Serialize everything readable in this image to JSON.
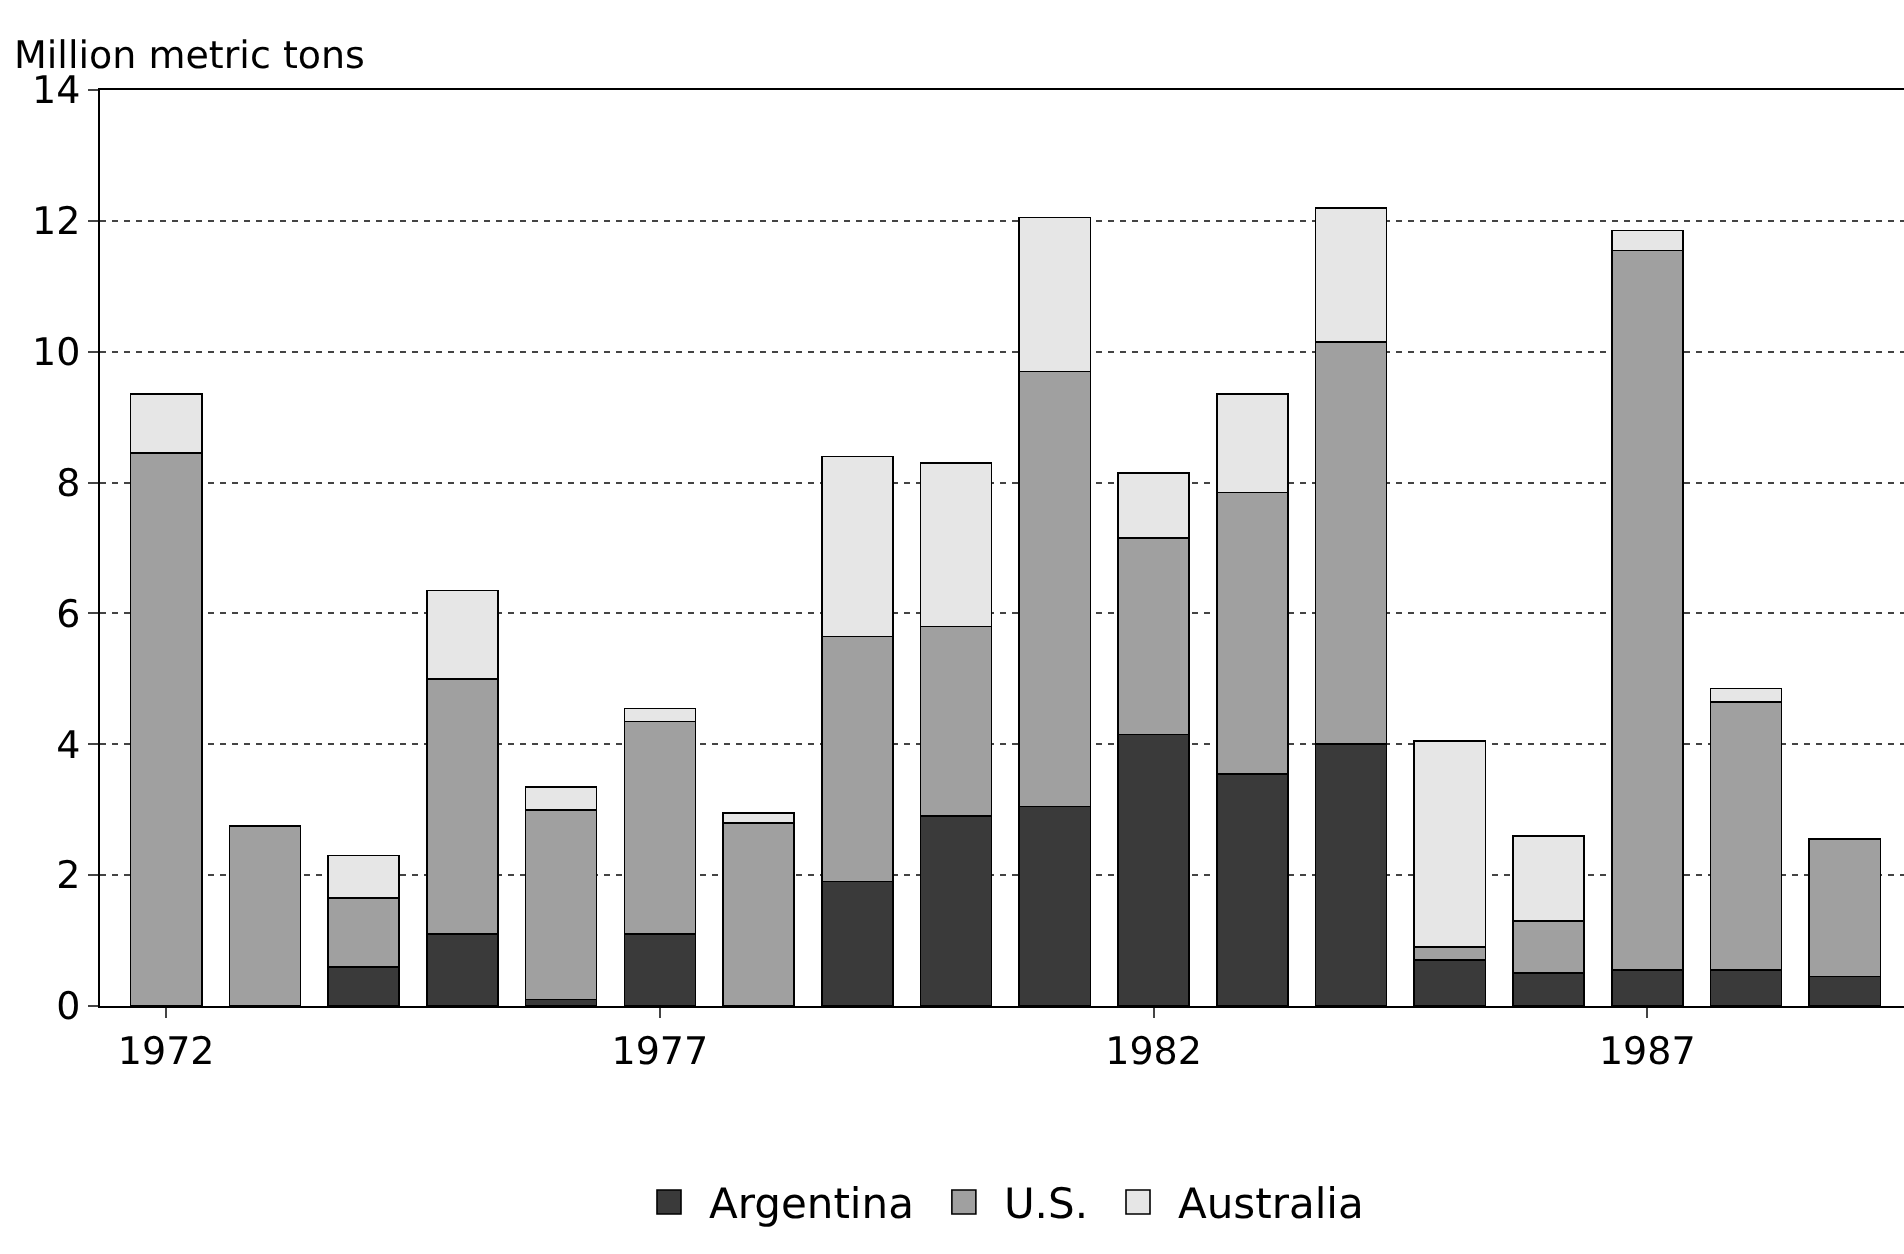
{
  "chart_data": {
    "type": "bar",
    "stacked": true,
    "ylabel": "Million metric tons",
    "x": [
      1972,
      1973,
      1974,
      1975,
      1976,
      1977,
      1978,
      1979,
      1980,
      1981,
      1982,
      1983,
      1984,
      1985,
      1986,
      1987,
      1988,
      1989
    ],
    "series": [
      {
        "name": "Argentina",
        "color": "#3a3a3a",
        "values": [
          null,
          null,
          0.6,
          1.1,
          0.1,
          1.1,
          null,
          1.9,
          2.9,
          3.05,
          4.15,
          3.55,
          4.0,
          0.7,
          0.5,
          0.55,
          0.55,
          0.45
        ]
      },
      {
        "name": "U.S.",
        "color": "#a0a0a0",
        "values": [
          8.45,
          2.75,
          1.05,
          3.9,
          2.9,
          3.25,
          2.8,
          3.75,
          2.9,
          6.65,
          3.0,
          4.3,
          6.15,
          0.2,
          0.8,
          11.0,
          4.1,
          2.1
        ]
      },
      {
        "name": "Australia",
        "color": "#e6e6e6",
        "values": [
          0.9,
          null,
          0.65,
          1.35,
          0.35,
          0.2,
          0.15,
          2.75,
          2.5,
          2.35,
          1.0,
          1.5,
          2.05,
          3.15,
          1.3,
          0.3,
          0.2,
          null
        ]
      }
    ],
    "xlim": [
      1971.33,
      1989.6
    ],
    "xticks": [
      1972,
      1977,
      1982,
      1987
    ],
    "ylim": [
      0,
      14
    ],
    "yticks": [
      0,
      2,
      4,
      6,
      8,
      10,
      12,
      14
    ],
    "grid": "y",
    "legend": "bottom"
  }
}
